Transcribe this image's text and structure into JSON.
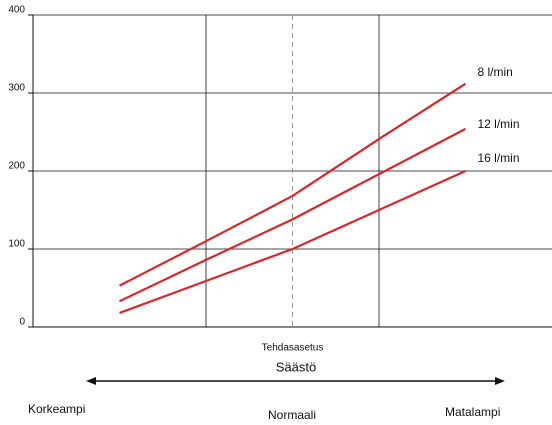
{
  "chart_data": {
    "type": "line",
    "x": [
      1,
      2,
      3,
      4,
      5
    ],
    "xlim": [
      0,
      6
    ],
    "xgrid": [
      2,
      4
    ],
    "ylim": [
      0,
      400
    ],
    "yticks": [
      0,
      100,
      200,
      300,
      400
    ],
    "grid": true,
    "series": [
      {
        "name": "8 l/min",
        "color": "#d9262a",
        "values": [
          53,
          110,
          168,
          241,
          312
        ]
      },
      {
        "name": "12 l/min",
        "color": "#d9262a",
        "values": [
          33,
          86,
          138,
          196,
          254
        ]
      },
      {
        "name": "16 l/min",
        "color": "#d9262a",
        "values": [
          18,
          59,
          100,
          150,
          200
        ]
      }
    ],
    "annotation": {
      "text": "Tehdasasetus",
      "x": 3
    },
    "scale_label": "Säästö",
    "scale_labels": [
      "Korkeampi",
      "Normaali",
      "Matalampi"
    ]
  }
}
